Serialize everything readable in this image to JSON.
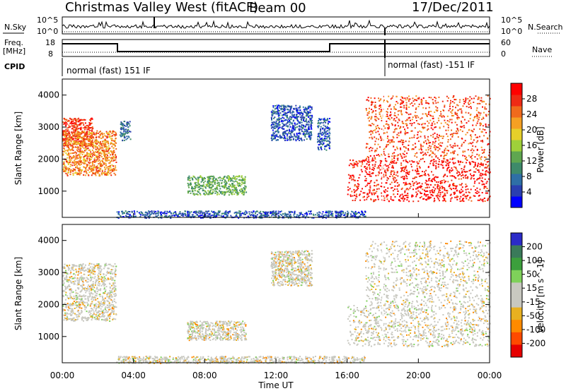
{
  "header": {
    "title": "Christmas Valley West (fitACF)",
    "beam": "Beam 00",
    "date": "17/Dec/2011"
  },
  "top_panels": {
    "nsky_label": "N.Sky",
    "nsky_ticks": [
      "10^5",
      "10^0"
    ],
    "nsearch_label": "N.Search",
    "nsearch_ticks": [
      "10^5",
      "10^0"
    ],
    "freq_label": "Freq.",
    "freq_unit": "[MHz]",
    "freq_ticks": [
      "18",
      "8"
    ],
    "nave_label": "Nave",
    "nave_ticks": [
      "60",
      "0"
    ],
    "cpid_label": "CPID",
    "cpid_segments": [
      "normal (fast) 151 IF",
      "normal (fast) -151 IF"
    ]
  },
  "colors": {
    "power_scale": [
      "#0000ff",
      "#2a3fb0",
      "#2e6fa6",
      "#3e8a6a",
      "#5fa650",
      "#9fd03a",
      "#e6d02a",
      "#f5a023",
      "#f06a1c",
      "#ee2a15",
      "#ff0000"
    ],
    "velocity_scale": [
      "#2b2bc8",
      "#3a7a5a",
      "#3c9f3c",
      "#7fd15a",
      "#c8c8c0",
      "#c8c8c0",
      "#e8b020",
      "#ff8a00",
      "#ff4a00",
      "#e60000"
    ]
  },
  "chart_data": [
    {
      "type": "heatmap",
      "panel": "power",
      "ylabel": "Slant Range [km]",
      "ylim": [
        180,
        4500
      ],
      "yticks": [
        "1000",
        "2000",
        "3000",
        "4000"
      ],
      "colorbar_label": "Power [dB]",
      "colorbar_ticks": [
        "4",
        "8",
        "12",
        "16",
        "20",
        "24",
        "28"
      ],
      "regions": [
        {
          "t": [
            0.0,
            1.7
          ],
          "r": [
            2400,
            3300
          ],
          "level": 0.9
        },
        {
          "t": [
            0.0,
            3.0
          ],
          "r": [
            1500,
            2900
          ],
          "level": 0.75
        },
        {
          "t": [
            3.2,
            3.8
          ],
          "r": [
            2600,
            3200
          ],
          "level": 0.2
        },
        {
          "t": [
            7.0,
            10.3
          ],
          "r": [
            900,
            1500
          ],
          "level": 0.4
        },
        {
          "t": [
            11.7,
            14.0
          ],
          "r": [
            2600,
            3700
          ],
          "level": 0.15
        },
        {
          "t": [
            14.3,
            15.0
          ],
          "r": [
            2300,
            3300
          ],
          "level": 0.15
        },
        {
          "t": [
            16.0,
            24.0
          ],
          "r": [
            700,
            2000
          ],
          "level": 0.95
        },
        {
          "t": [
            17.0,
            24.0
          ],
          "r": [
            2000,
            4000
          ],
          "level": 0.85
        },
        {
          "t": [
            3.0,
            17.0
          ],
          "r": [
            180,
            400
          ],
          "level": 0.15
        }
      ]
    },
    {
      "type": "heatmap",
      "panel": "velocity",
      "ylabel": "Slant Range [km]",
      "ylim": [
        180,
        4500
      ],
      "yticks": [
        "1000",
        "2000",
        "3000",
        "4000"
      ],
      "colorbar_label": "Velocity [m s^-1]",
      "colorbar_ticks": [
        "200",
        "100",
        "50",
        "15",
        "-15",
        "-50",
        "-100",
        "-200"
      ],
      "xlabel": "Time UT",
      "xticks": [
        "00:00",
        "04:00",
        "08:00",
        "12:00",
        "16:00",
        "20:00",
        "00:00"
      ],
      "regions": [
        {
          "t": [
            0.0,
            3.0
          ],
          "r": [
            1500,
            3300
          ],
          "value": 0
        },
        {
          "t": [
            7.0,
            10.3
          ],
          "r": [
            900,
            1500
          ],
          "value": 0
        },
        {
          "t": [
            11.7,
            14.0
          ],
          "r": [
            2600,
            3700
          ],
          "value": -40
        },
        {
          "t": [
            16.0,
            24.0
          ],
          "r": [
            700,
            2000
          ],
          "value": 0
        },
        {
          "t": [
            17.0,
            24.0
          ],
          "r": [
            2000,
            4000
          ],
          "value": 10
        },
        {
          "t": [
            3.0,
            17.0
          ],
          "r": [
            180,
            400
          ],
          "value": -60
        }
      ]
    }
  ]
}
